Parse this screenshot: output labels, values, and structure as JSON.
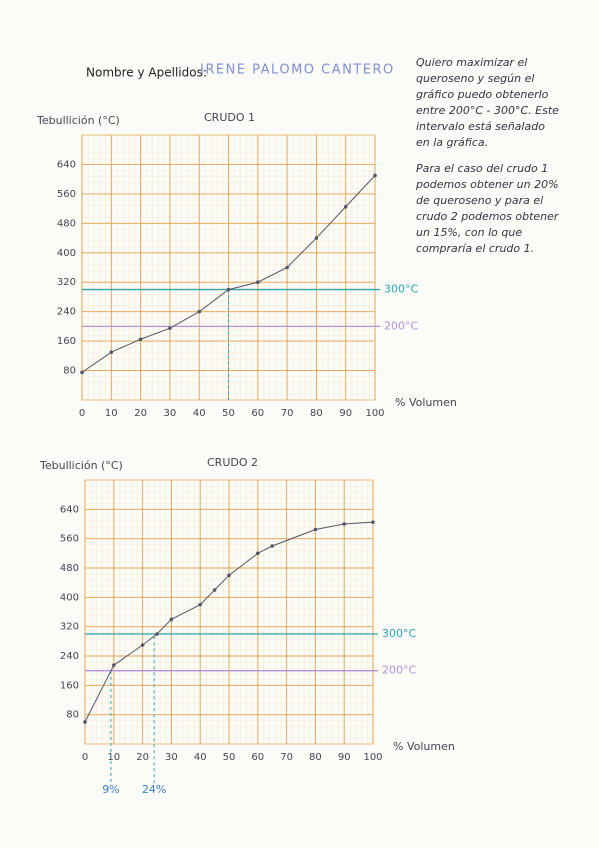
{
  "header": {
    "label": "Nombre y Apellidos:",
    "name": "IRENE PALOMO CANTERO"
  },
  "notes": [
    "Quiero maximizar el",
    "queroseno y según el",
    "gráfico puedo obtenerlo",
    "entre 200°C - 300°C. Este",
    "intervalo está señalado",
    "en la gráfica.",
    "Para el caso del crudo 1",
    "podemos obtener un 20%",
    "de queroseno y para el",
    "crudo 2 podemos obtener",
    "un 15%, con lo que",
    "compraría el crudo 1."
  ],
  "chart_data": [
    {
      "type": "line",
      "title": "CRUDO 1",
      "y_label": "Tebullición (°C)",
      "x_label": "% Volumen",
      "x": [
        0,
        10,
        20,
        30,
        40,
        50,
        60,
        70,
        80,
        90,
        100
      ],
      "series": [
        {
          "color": "#555566",
          "values": [
            75,
            130,
            165,
            195,
            240,
            300,
            320,
            360,
            440,
            525,
            610
          ]
        }
      ],
      "xlim": [
        0,
        100
      ],
      "ylim": [
        0,
        720
      ],
      "xticks": [
        0,
        10,
        20,
        30,
        40,
        50,
        60,
        70,
        80,
        90,
        100
      ],
      "yticks": [
        80,
        160,
        240,
        320,
        400,
        480,
        560,
        640
      ],
      "grid": true,
      "reference_lines": [
        {
          "value": 300,
          "label": "300°C",
          "color": "#2aa6b4"
        },
        {
          "value": 200,
          "label": "200°C",
          "color": "#b690da"
        }
      ],
      "markers": [
        {
          "x": 50
        }
      ]
    },
    {
      "type": "line",
      "title": "CRUDO 2",
      "y_label": "Tebullición (°C)",
      "x_label": "% Volumen",
      "x": [
        0,
        10,
        20,
        25,
        30,
        40,
        45,
        50,
        60,
        65,
        80,
        90,
        100
      ],
      "series": [
        {
          "color": "#555566",
          "values": [
            60,
            215,
            270,
            300,
            340,
            380,
            420,
            460,
            520,
            540,
            585,
            600,
            605
          ]
        }
      ],
      "xlim": [
        0,
        100
      ],
      "ylim": [
        0,
        720
      ],
      "xticks": [
        0,
        10,
        20,
        30,
        40,
        50,
        60,
        70,
        80,
        90,
        100
      ],
      "yticks": [
        80,
        160,
        240,
        320,
        400,
        480,
        560,
        640
      ],
      "grid": true,
      "reference_lines": [
        {
          "value": 300,
          "label": "300°C",
          "color": "#2aa6b4"
        },
        {
          "value": 200,
          "label": "200°C",
          "color": "#b690da"
        }
      ],
      "markers": [
        {
          "x": 9,
          "label": "9%"
        },
        {
          "x": 24,
          "label": "24%"
        }
      ]
    }
  ]
}
